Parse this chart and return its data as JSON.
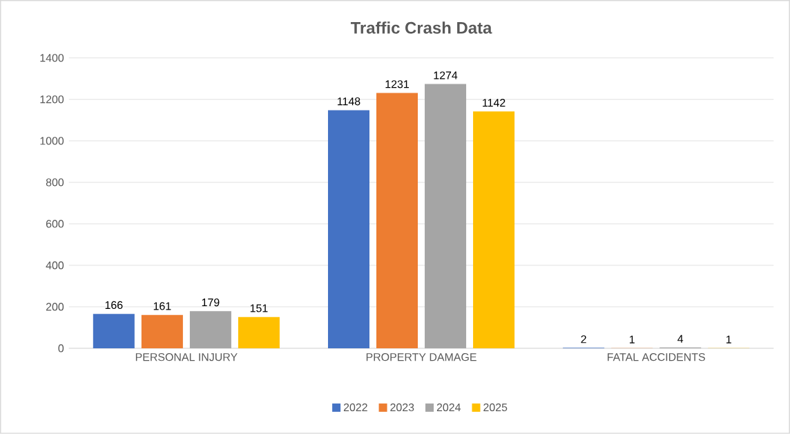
{
  "chart_data": {
    "type": "bar",
    "title": "Traffic Crash Data",
    "categories": [
      "PERSONAL INJURY",
      "PROPERTY DAMAGE",
      "FATAL ACCIDENTS"
    ],
    "series": [
      {
        "name": "2022",
        "color": "#4472c4",
        "values": [
          166,
          1148,
          2
        ]
      },
      {
        "name": "2023",
        "color": "#ed7d31",
        "values": [
          161,
          1231,
          1
        ]
      },
      {
        "name": "2024",
        "color": "#a5a5a5",
        "values": [
          179,
          1274,
          4
        ]
      },
      {
        "name": "2025",
        "color": "#ffc000",
        "values": [
          151,
          1142,
          1
        ]
      }
    ],
    "ylim": [
      0,
      1400
    ],
    "yticks": [
      0,
      200,
      400,
      600,
      800,
      1000,
      1200,
      1400
    ],
    "grid": "y",
    "legend": "bottom",
    "data_labels": true
  }
}
